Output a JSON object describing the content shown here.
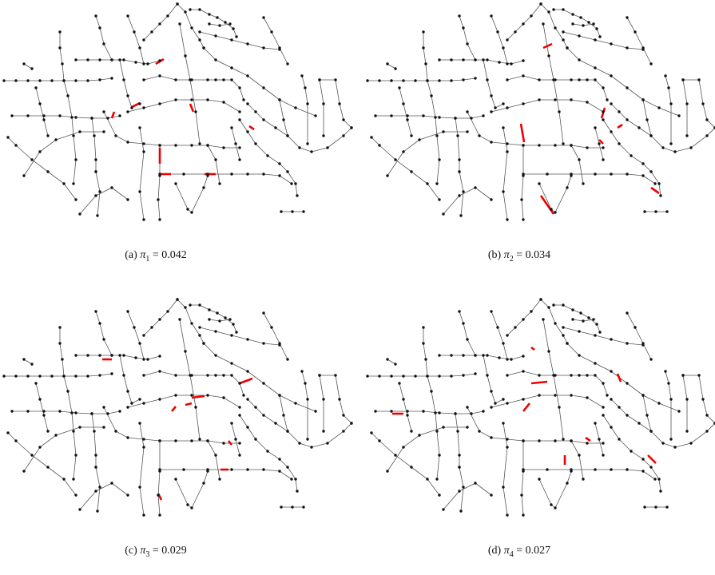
{
  "panels": [
    {
      "tag": "(a)",
      "symbol": "π",
      "index": "1",
      "relation": "=",
      "value": 0.042
    },
    {
      "tag": "(b)",
      "symbol": "π",
      "index": "2",
      "relation": "=",
      "value": 0.034
    },
    {
      "tag": "(c)",
      "symbol": "π",
      "index": "3",
      "relation": "=",
      "value": 0.029
    },
    {
      "tag": "(d)",
      "symbol": "π",
      "index": "4",
      "relation": "=",
      "value": 0.027
    }
  ]
}
